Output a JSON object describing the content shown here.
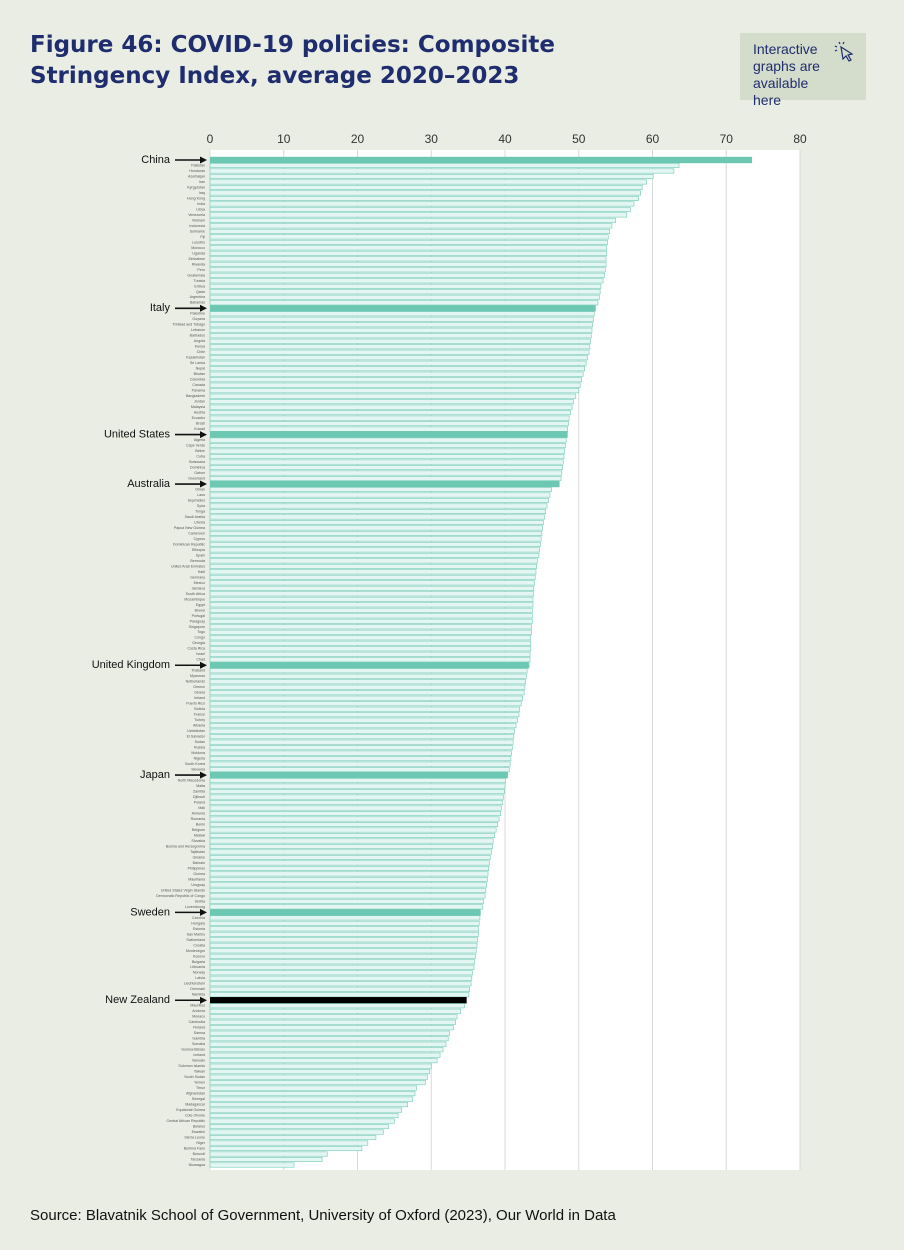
{
  "chart_data": {
    "type": "barh",
    "title": "Figure 46: COVID-19 policies: Composite Stringency Index, average 2020–2023",
    "note": "Interactive graphs are available here",
    "source": "Source: Blavatnik School of Government, University of Oxford (2023), Our World in Data",
    "xlim": [
      0,
      80
    ],
    "xticks": [
      0,
      10,
      20,
      30,
      40,
      50,
      60,
      70,
      80
    ],
    "grid": true,
    "color": "#e4f6f2",
    "edge_color": "#73c9b6",
    "highlighted": [
      {
        "name": "China",
        "color": "#6cc8b2"
      },
      {
        "name": "Italy",
        "color": "#6cc8b2"
      },
      {
        "name": "United States",
        "color": "#6cc8b2"
      },
      {
        "name": "Australia",
        "color": "#6cc8b2"
      },
      {
        "name": "United Kingdom",
        "color": "#6cc8b2"
      },
      {
        "name": "Japan",
        "color": "#6cc8b2"
      },
      {
        "name": "Sweden",
        "color": "#6cc8b2"
      },
      {
        "name": "New Zealand",
        "color": "#000000"
      }
    ],
    "categories": [
      "China",
      "Pakistan",
      "Honduras",
      "Azerbaijan",
      "Iran",
      "Kyrgyzstan",
      "Iraq",
      "Hong Kong",
      "India",
      "Libya",
      "Venezuela",
      "Vietnam",
      "Indonesia",
      "Suriname",
      "Fiji",
      "Lesotho",
      "Morocco",
      "Uganda",
      "Zimbabwe",
      "Rwanda",
      "Peru",
      "Guatemala",
      "Tunisia",
      "Eritrea",
      "Qatar",
      "Argentina",
      "Bahamas",
      "Italy",
      "Palestine",
      "Guyana",
      "Trinidad and Tobago",
      "Lebanon",
      "Barbados",
      "Angola",
      "Kenya",
      "Chile",
      "Kazakhstan",
      "Sri Lanka",
      "Nepal",
      "Bhutan",
      "Colombia",
      "Canada",
      "Panama",
      "Bangladesh",
      "Jordan",
      "Malaysia",
      "Austria",
      "Ecuador",
      "Brazil",
      "Kuwait",
      "United States",
      "Algeria",
      "Cape Verde",
      "Belize",
      "Cuba",
      "Botswana",
      "Dominica",
      "Gabon",
      "Greenland",
      "Australia",
      "Oman",
      "Laos",
      "Seychelles",
      "Syria",
      "Tonga",
      "Saudi Arabia",
      "Liberia",
      "Papua New Guinea",
      "Cameroon",
      "Cyprus",
      "Dominican Republic",
      "Ethiopia",
      "Spain",
      "Bermuda",
      "United Arab Emirates",
      "Haiti",
      "Germany",
      "Mexico",
      "Jamaica",
      "South Africa",
      "Mozambique",
      "Egypt",
      "Brunei",
      "Portugal",
      "Paraguay",
      "Singapore",
      "Togo",
      "Congo",
      "Georgia",
      "Costa Rica",
      "Israel",
      "Chad",
      "United Kingdom",
      "Thailand",
      "Myanmar",
      "Netherlands",
      "Greece",
      "Ghana",
      "Ireland",
      "Puerto Rico",
      "Bolivia",
      "France",
      "Turkey",
      "Albania",
      "Uzbekistan",
      "El Salvador",
      "Sudan",
      "Russia",
      "Moldova",
      "Nigeria",
      "South Korea",
      "Slovenia",
      "Japan",
      "North Macedonia",
      "Malta",
      "Zambia",
      "Djibouti",
      "Poland",
      "Mali",
      "Armenia",
      "Romania",
      "Benin",
      "Belgium",
      "Malawi",
      "Slovakia",
      "Bosnia and Herzegovina",
      "Tajikistan",
      "Ukraine",
      "Bahrain",
      "Philippines",
      "Guinea",
      "Mauritania",
      "Uruguay",
      "United States Virgin Islands",
      "Democratic Republic of Congo",
      "Serbia",
      "Luxembourg",
      "Sweden",
      "Czechia",
      "Hungary",
      "Estonia",
      "San Marino",
      "Switzerland",
      "Croatia",
      "Montenegro",
      "Kosovo",
      "Bulgaria",
      "Lithuania",
      "Norway",
      "Latvia",
      "Liechtenstein",
      "Denmark",
      "Namibia",
      "New Zealand",
      "Mauritius",
      "Andorra",
      "Monaco",
      "Cambodia",
      "Finland",
      "Samoa",
      "Gambia",
      "Somalia",
      "Guinea-Bissau",
      "Iceland",
      "Vanuatu",
      "Solomon Islands",
      "Taiwan",
      "South Sudan",
      "Yemen",
      "Timor",
      "Afghanistan",
      "Senegal",
      "Madagascar",
      "Equatorial Guinea",
      "Cote d'Ivoire",
      "Central African Republic",
      "Belarus",
      "Eswatini",
      "Sierra Leone",
      "Niger",
      "Burkina Faso",
      "Burundi",
      "Tanzania",
      "Nicaragua"
    ],
    "values": [
      73.5,
      63.6,
      62.9,
      60.1,
      59.2,
      58.6,
      58.4,
      58.1,
      57.5,
      57,
      56.5,
      55,
      54.5,
      54.2,
      54,
      53.9,
      53.8,
      53.8,
      53.7,
      53.7,
      53.6,
      53.5,
      53.3,
      53,
      52.9,
      52.8,
      52.6,
      52.3,
      52.1,
      52,
      51.9,
      51.8,
      51.7,
      51.6,
      51.5,
      51.4,
      51.2,
      51,
      50.8,
      50.6,
      50.4,
      50.2,
      50,
      49.6,
      49.3,
      49.1,
      48.9,
      48.7,
      48.6,
      48.5,
      48.5,
      48.3,
      48.2,
      48.1,
      48,
      47.9,
      47.8,
      47.7,
      47.6,
      47.4,
      46.3,
      46.1,
      45.9,
      45.7,
      45.5,
      45.4,
      45.2,
      45.1,
      45,
      44.9,
      44.8,
      44.7,
      44.6,
      44.4,
      44.3,
      44.2,
      44.1,
      44,
      43.9,
      43.9,
      43.8,
      43.8,
      43.7,
      43.7,
      43.7,
      43.6,
      43.6,
      43.5,
      43.5,
      43.5,
      43.4,
      43.4,
      43.3,
      43,
      42.9,
      42.8,
      42.7,
      42.6,
      42.4,
      42.2,
      42,
      41.9,
      41.7,
      41.5,
      41.3,
      41.2,
      41.1,
      41,
      40.9,
      40.8,
      40.7,
      40.6,
      40.4,
      40.1,
      40,
      39.9,
      39.8,
      39.7,
      39.5,
      39.4,
      39.2,
      39,
      38.8,
      38.6,
      38.4,
      38.3,
      38.2,
      38,
      37.9,
      37.8,
      37.7,
      37.6,
      37.5,
      37.4,
      37.3,
      37.1,
      37,
      36.7,
      36.6,
      36.5,
      36.4,
      36.4,
      36.3,
      36.2,
      36.1,
      36,
      35.9,
      35.8,
      35.6,
      35.5,
      35.4,
      35.2,
      35.1,
      34.8,
      34.5,
      34,
      33.5,
      33.3,
      33,
      32.5,
      32.3,
      32,
      31.6,
      31.2,
      30.8,
      30,
      29.8,
      29.5,
      29.2,
      28,
      27.8,
      27.5,
      26.8,
      26,
      25.5,
      25,
      24.2,
      23.5,
      22.5,
      21.4,
      20.6,
      15.9,
      15.2,
      11.4
    ]
  }
}
